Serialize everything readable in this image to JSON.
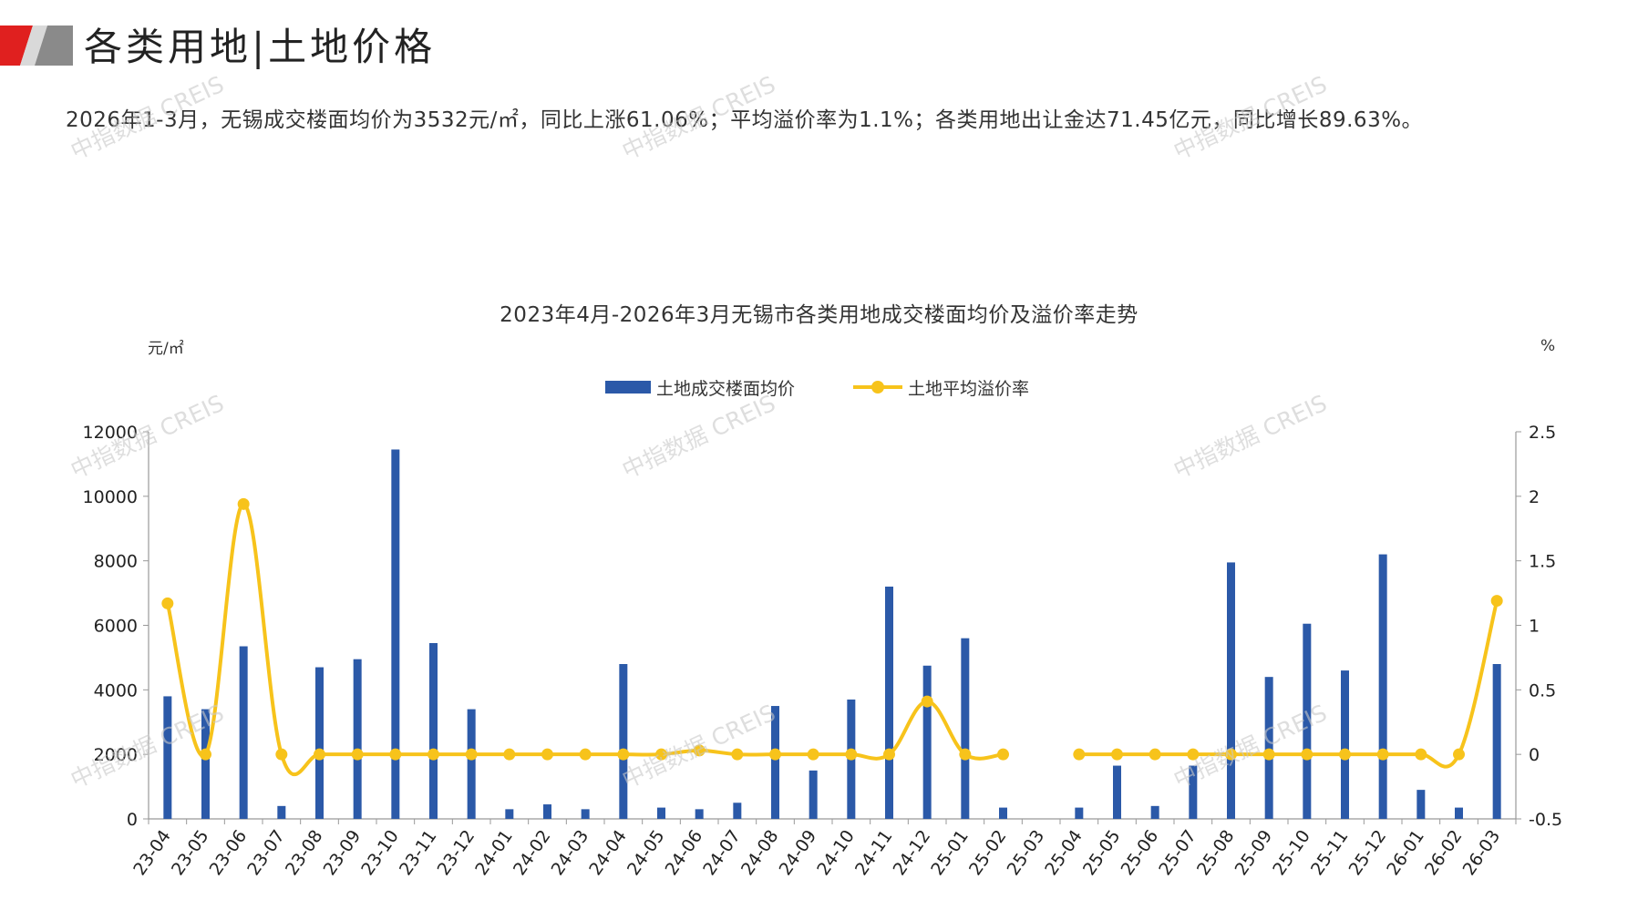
{
  "header": {
    "title": "各类用地|土地价格",
    "summary": "2026年1-3月，无锡成交楼面均价为3532元/㎡，同比上涨61.06%；平均溢价率为1.1%；各类用地出让金达71.45亿元，同比增长89.63%。"
  },
  "watermark": "中指数据 CREIS",
  "colors": {
    "bar": "#2b59a8",
    "line": "#f7c31b",
    "accent_red": "#e0201f",
    "accent_gray": "#8a8a8a"
  },
  "chart_data": {
    "type": "bar",
    "title": "2023年4月-2026年3月无锡市各类用地成交楼面均价及溢价率走势",
    "ylabel": "元/㎡",
    "y2label": "%",
    "ylim": [
      0,
      12000
    ],
    "y2lim": [
      -0.5,
      2.5
    ],
    "yticks": [
      "0",
      "2000",
      "4000",
      "6000",
      "8000",
      "10000",
      "12000"
    ],
    "y2ticks": [
      "-0.5",
      "0",
      "0.5",
      "1",
      "1.5",
      "2",
      "2.5"
    ],
    "legend_position": "top-center",
    "grid": false,
    "categories": [
      "23-04",
      "23-05",
      "23-06",
      "23-07",
      "23-08",
      "23-09",
      "23-10",
      "23-11",
      "23-12",
      "24-01",
      "24-02",
      "24-03",
      "24-04",
      "24-05",
      "24-06",
      "24-07",
      "24-08",
      "24-09",
      "24-10",
      "24-11",
      "24-12",
      "25-01",
      "25-02",
      "25-03",
      "25-04",
      "25-05",
      "25-06",
      "25-07",
      "25-08",
      "25-09",
      "25-10",
      "25-11",
      "25-12",
      "26-01",
      "26-02",
      "26-03"
    ],
    "series": [
      {
        "name": "土地成交楼面均价",
        "type": "bar",
        "axis": "left",
        "values": [
          3800,
          3400,
          5350,
          400,
          4700,
          4950,
          11450,
          5450,
          3400,
          300,
          450,
          300,
          4800,
          350,
          300,
          500,
          3500,
          1500,
          3700,
          7200,
          4750,
          5600,
          350,
          null,
          350,
          1650,
          400,
          1650,
          7950,
          4400,
          6050,
          4600,
          8200,
          900,
          350,
          4800
        ]
      },
      {
        "name": "土地平均溢价率",
        "type": "line",
        "axis": "right",
        "values": [
          1.17,
          0.0,
          1.94,
          0.0,
          0.0,
          0.0,
          0.0,
          0.0,
          0.0,
          0.0,
          0.0,
          0.0,
          0.0,
          0.0,
          0.03,
          0.0,
          0.0,
          0.0,
          0.0,
          0.0,
          0.41,
          0.0,
          0.0,
          null,
          0.0,
          0.0,
          0.0,
          0.0,
          0.0,
          0.0,
          0.0,
          0.0,
          0.0,
          0.0,
          0.0,
          1.19
        ]
      }
    ]
  }
}
